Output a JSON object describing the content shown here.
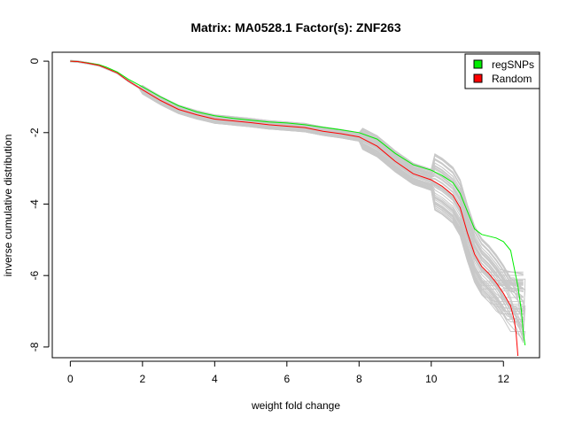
{
  "chart_data": {
    "type": "line",
    "title": "Matrix: MA0528.1 Factor(s): ZNF263",
    "xlabel": "weight fold change",
    "ylabel": "inverse cumulative distribution",
    "xlim": [
      -0.5,
      13.0
    ],
    "ylim": [
      -8.3,
      0.25
    ],
    "xticks": [
      0,
      2,
      4,
      6,
      8,
      10,
      12
    ],
    "yticks": [
      0,
      -2,
      -4,
      -6,
      -8
    ],
    "grid": false,
    "legend": {
      "position": "top-right",
      "entries": [
        {
          "label": "regSNPs",
          "color": "#00ee00"
        },
        {
          "label": "Random",
          "color": "#ff0000"
        }
      ]
    },
    "series": [
      {
        "name": "regSNPs",
        "color": "#00ee00",
        "x": [
          0.0,
          0.2,
          0.5,
          0.8,
          1.0,
          1.3,
          1.6,
          2.0,
          2.5,
          3.0,
          3.5,
          4.0,
          4.5,
          5.0,
          5.5,
          6.0,
          6.5,
          7.0,
          7.5,
          8.0,
          8.5,
          9.0,
          9.5,
          10.0,
          10.3,
          10.6,
          10.8,
          11.0,
          11.2,
          11.4,
          11.6,
          11.8,
          12.0,
          12.2,
          12.4,
          12.5,
          12.55,
          12.6
        ],
        "y": [
          0.0,
          -0.01,
          -0.05,
          -0.1,
          -0.17,
          -0.3,
          -0.5,
          -0.72,
          -1.0,
          -1.25,
          -1.42,
          -1.53,
          -1.6,
          -1.65,
          -1.7,
          -1.73,
          -1.78,
          -1.85,
          -1.92,
          -2.0,
          -2.18,
          -2.58,
          -2.9,
          -3.05,
          -3.2,
          -3.4,
          -3.7,
          -4.2,
          -4.7,
          -4.85,
          -4.9,
          -4.95,
          -5.05,
          -5.3,
          -6.3,
          -7.0,
          -7.6,
          -7.95
        ]
      },
      {
        "name": "Random",
        "color": "#ff0000",
        "x": [
          0.0,
          0.2,
          0.5,
          0.8,
          1.0,
          1.3,
          1.6,
          2.0,
          2.5,
          3.0,
          3.5,
          4.0,
          4.5,
          5.0,
          5.5,
          6.0,
          6.5,
          7.0,
          7.5,
          8.0,
          8.5,
          9.0,
          9.5,
          10.0,
          10.3,
          10.6,
          10.8,
          11.0,
          11.2,
          11.4,
          11.6,
          11.8,
          12.0,
          12.2,
          12.3,
          12.35,
          12.4
        ],
        "y": [
          0.0,
          -0.01,
          -0.06,
          -0.12,
          -0.2,
          -0.33,
          -0.55,
          -0.8,
          -1.1,
          -1.35,
          -1.5,
          -1.62,
          -1.67,
          -1.72,
          -1.78,
          -1.82,
          -1.86,
          -1.96,
          -2.03,
          -2.12,
          -2.38,
          -2.8,
          -3.15,
          -3.32,
          -3.5,
          -3.75,
          -4.1,
          -4.8,
          -5.4,
          -5.75,
          -5.95,
          -6.2,
          -6.5,
          -6.85,
          -7.25,
          -7.6,
          -8.25
        ]
      }
    ]
  }
}
